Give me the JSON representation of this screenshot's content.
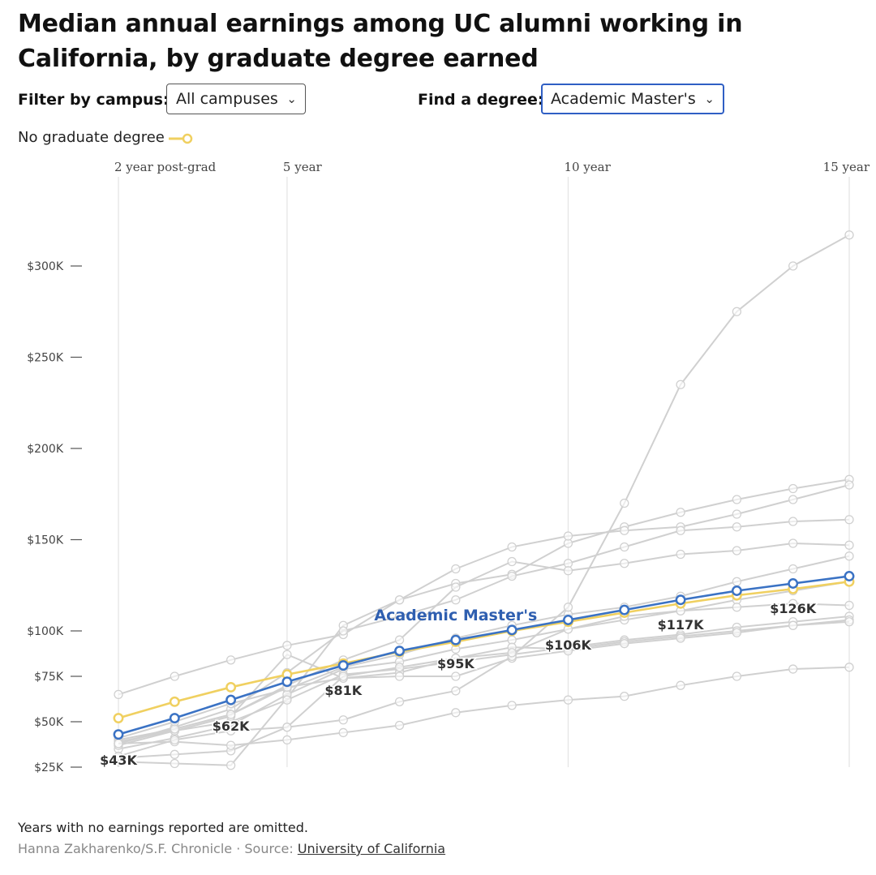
{
  "title": "Median annual earnings among UC alumni working in California, by graduate degree earned",
  "filters": {
    "campus_label": "Filter by campus:",
    "campus_value": "All campuses",
    "degree_label": "Find a degree:",
    "degree_value": "Academic Master's"
  },
  "legend": {
    "no_grad_label": "No graduate degree"
  },
  "footer": {
    "note": "Years with no earnings reported are omitted.",
    "credit_prefix": "Hanna Zakharenko/S.F. Chronicle · Source: ",
    "source_link": "University of California"
  },
  "colors": {
    "highlight": "#3a72c4",
    "baseline": "#f0d060",
    "others": "#dddddd",
    "grid": "#e3e3e3",
    "label_blue": "#2f5fb0"
  },
  "chart_data": {
    "type": "line",
    "x_title_ticks": [
      {
        "x": 2,
        "label": "2 year post-grad"
      },
      {
        "x": 5,
        "label": "5 year"
      },
      {
        "x": 10,
        "label": "10 year"
      },
      {
        "x": 15,
        "label": "15 year"
      }
    ],
    "xlim": [
      2,
      15
    ],
    "ylim": [
      25000,
      320000
    ],
    "y_ticks": [
      {
        "v": 25000,
        "label": "$25K"
      },
      {
        "v": 50000,
        "label": "$50K"
      },
      {
        "v": 75000,
        "label": "$75K"
      },
      {
        "v": 100000,
        "label": "$100K"
      },
      {
        "v": 150000,
        "label": "$150K"
      },
      {
        "v": 200000,
        "label": "$200K"
      },
      {
        "v": 250000,
        "label": "$250K"
      },
      {
        "v": 300000,
        "label": "$300K"
      }
    ],
    "highlight": {
      "name": "Academic Master's",
      "x": [
        2,
        3,
        4,
        5,
        6,
        7,
        8,
        9,
        10,
        11,
        12,
        13,
        14,
        15
      ],
      "y": [
        43000,
        52000,
        62000,
        72000,
        81000,
        89000,
        95000,
        100500,
        106000,
        111500,
        117000,
        122000,
        126000,
        130000
      ]
    },
    "baseline": {
      "name": "No graduate degree",
      "x": [
        2,
        3,
        4,
        5,
        6,
        7,
        8,
        9,
        10,
        11,
        12,
        13,
        14,
        15
      ],
      "y": [
        52000,
        61000,
        69000,
        76000,
        82000,
        88500,
        94000,
        100000,
        105000,
        110000,
        115000,
        119500,
        123000,
        127000
      ]
    },
    "value_labels": [
      {
        "x": 2,
        "text": "$43K",
        "y": 43000
      },
      {
        "x": 4,
        "text": "$62K",
        "y": 62000
      },
      {
        "x": 6,
        "text": "$81K",
        "y": 81000
      },
      {
        "x": 8,
        "text": "$95K",
        "y": 95000
      },
      {
        "x": 10,
        "text": "$106K",
        "y": 106000
      },
      {
        "x": 12,
        "text": "$117K",
        "y": 117000
      },
      {
        "x": 14,
        "text": "$126K",
        "y": 126000
      }
    ],
    "series_label": "Academic Master's",
    "other_series": [
      {
        "name": "others-1",
        "x": [
          2,
          3,
          4,
          5,
          6,
          7,
          8,
          9,
          10,
          11,
          12,
          13,
          14,
          15
        ],
        "y": [
          28000,
          27000,
          26000,
          63000,
          103000,
          117000,
          126000,
          131000,
          148000,
          157000,
          165000,
          172000,
          178000,
          183000
        ]
      },
      {
        "name": "others-2",
        "x": [
          2,
          3,
          4,
          5,
          6,
          7,
          8,
          9,
          10,
          11,
          12,
          13,
          14,
          15
        ],
        "y": [
          65000,
          75000,
          84000,
          92000,
          98000,
          117000,
          134000,
          146000,
          152000,
          155000,
          157000,
          164000,
          172000,
          180000
        ]
      },
      {
        "name": "others-3",
        "x": [
          2,
          3,
          4,
          5,
          6,
          7,
          8,
          9,
          10,
          11,
          12,
          13,
          14,
          15
        ],
        "y": [
          38000,
          47000,
          57000,
          77000,
          100000,
          108000,
          117000,
          130000,
          137000,
          146000,
          155000,
          157000,
          160000,
          161000
        ]
      },
      {
        "name": "others-4",
        "x": [
          2,
          3,
          4,
          5,
          6,
          7,
          8,
          9,
          10,
          11,
          12,
          13,
          14,
          15
        ],
        "y": [
          40000,
          46000,
          54000,
          70000,
          84000,
          95000,
          124000,
          138000,
          133000,
          137000,
          142000,
          144000,
          148000,
          147000
        ]
      },
      {
        "name": "others-5",
        "x": [
          2,
          3,
          4,
          5,
          6,
          7,
          8,
          9,
          10,
          11,
          12,
          13,
          14,
          15
        ],
        "y": [
          41000,
          50000,
          60000,
          68000,
          80000,
          87000,
          96000,
          103000,
          109000,
          113000,
          119000,
          127000,
          134000,
          141000
        ]
      },
      {
        "name": "others-6",
        "x": [
          2,
          3,
          4,
          5,
          6,
          7,
          8,
          9,
          10,
          11,
          12,
          13,
          14,
          15
        ],
        "y": [
          35000,
          41000,
          48000,
          65000,
          79000,
          83000,
          90000,
          95000,
          101000,
          106000,
          111000,
          117000,
          122000,
          127000
        ]
      },
      {
        "name": "others-7",
        "x": [
          2,
          3,
          4,
          5,
          6,
          7,
          8,
          9,
          10,
          11,
          12,
          13,
          14,
          15
        ],
        "y": [
          39000,
          45000,
          50000,
          62000,
          76000,
          79000,
          83000,
          87000,
          91000,
          95000,
          98000,
          102000,
          105000,
          108000
        ]
      },
      {
        "name": "others-8",
        "x": [
          2,
          3,
          4,
          5,
          6,
          7,
          8,
          9,
          10,
          11,
          12,
          13,
          14,
          15
        ],
        "y": [
          37000,
          45000,
          53000,
          87000,
          74000,
          77000,
          85000,
          91000,
          90000,
          94000,
          97000,
          100000,
          103000,
          106000
        ]
      },
      {
        "name": "others-9",
        "x": [
          2,
          3,
          4,
          5,
          6,
          7,
          8,
          9,
          10,
          11,
          12,
          13,
          14,
          15
        ],
        "y": [
          38000,
          46000,
          54000,
          69000,
          74000,
          75000,
          75000,
          85000,
          89000,
          93000,
          96000,
          99000,
          103000,
          105000
        ]
      },
      {
        "name": "others-10",
        "x": [
          2,
          3,
          4,
          5,
          6,
          7,
          8,
          9,
          10,
          11,
          12,
          13,
          14,
          15
        ],
        "y": [
          30000,
          32000,
          34000,
          47000,
          51000,
          61000,
          67000,
          86000,
          113000,
          170000,
          235000,
          275000,
          300000,
          317000
        ]
      },
      {
        "name": "others-11",
        "x": [
          2,
          3,
          4,
          5,
          6,
          7,
          8,
          9,
          10,
          11,
          12,
          13,
          14,
          15
        ],
        "y": [
          38000,
          39000,
          37000,
          40000,
          44000,
          48000,
          55000,
          59000,
          62000,
          64000,
          70000,
          75000,
          79000,
          80000
        ]
      },
      {
        "name": "others-12",
        "x": [
          2,
          3,
          4,
          5,
          6,
          7,
          8,
          9,
          10,
          11,
          12,
          13,
          14,
          15
        ],
        "y": [
          31000,
          40000,
          45000,
          47000,
          75000,
          80000,
          85000,
          88000,
          101000,
          108000,
          111000,
          113000,
          115000,
          114000
        ]
      }
    ]
  }
}
